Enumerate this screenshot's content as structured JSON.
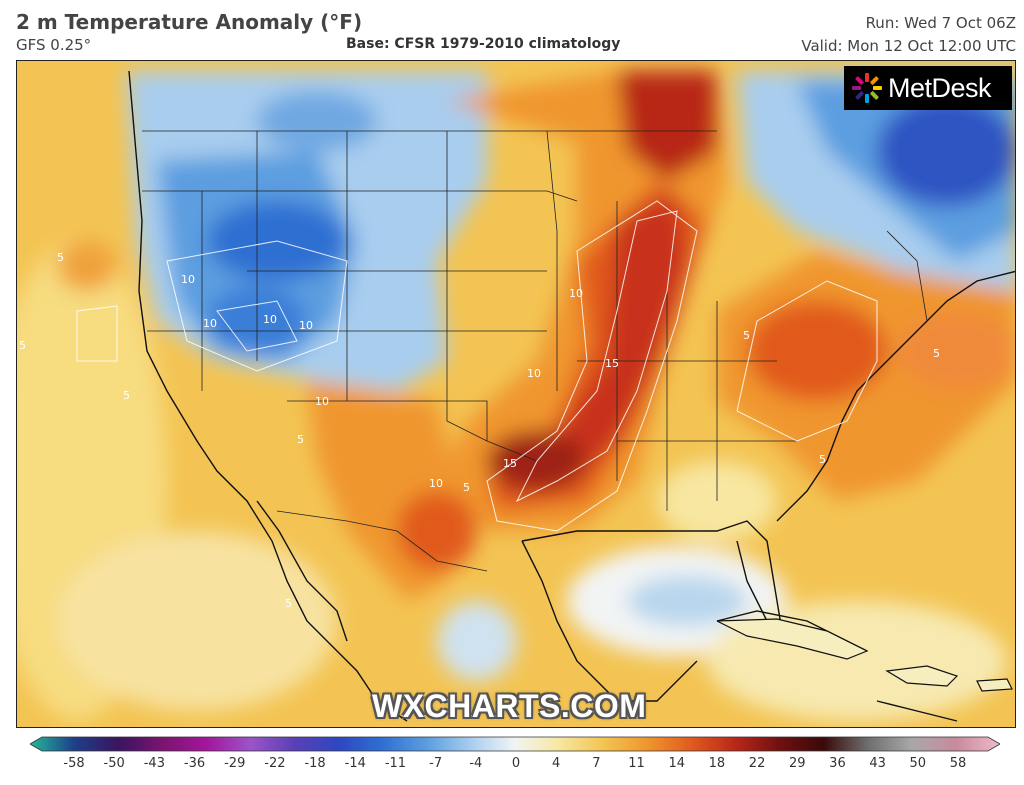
{
  "header": {
    "title": "2 m Temperature Anomaly (°F)",
    "model": "GFS 0.25°",
    "base": "Base: CFSR 1979-2010 climatology",
    "run": "Run: Wed 7 Oct 06Z",
    "valid": "Valid: Mon 12 Oct 12:00 UTC"
  },
  "logo": {
    "text": "MetDesk"
  },
  "watermark": "WXCHARTS.COM",
  "colorbar": {
    "ticks": [
      "-58",
      "-50",
      "-43",
      "-36",
      "-29",
      "-22",
      "-18",
      "-14",
      "-11",
      "-7",
      "-4",
      "0",
      "4",
      "7",
      "11",
      "14",
      "18",
      "22",
      "29",
      "36",
      "43",
      "50",
      "58"
    ],
    "colors": [
      "#23b89a",
      "#1f3f8a",
      "#3a1460",
      "#7a1470",
      "#a4159a",
      "#9b55c8",
      "#5a3fb6",
      "#2d47c2",
      "#2f70d2",
      "#5b9ee0",
      "#a8cdee",
      "#f2f4f4",
      "#f7e7a0",
      "#f3c453",
      "#f0962e",
      "#e15a1e",
      "#b82818",
      "#701010",
      "#3a0a0a",
      "#6e6e6e",
      "#a8a8a8",
      "#c88b9e",
      "#f0b9c8"
    ]
  },
  "contour_labels": [
    {
      "text": "10"
    },
    {
      "text": "10"
    },
    {
      "text": "10"
    },
    {
      "text": "5"
    },
    {
      "text": "5"
    },
    {
      "text": "10"
    },
    {
      "text": "15"
    },
    {
      "text": "10"
    },
    {
      "text": "15"
    },
    {
      "text": "10"
    },
    {
      "text": "10"
    },
    {
      "text": "5"
    },
    {
      "text": "5"
    },
    {
      "text": "5"
    },
    {
      "text": "5"
    },
    {
      "text": "5"
    },
    {
      "text": "5"
    },
    {
      "text": "10"
    },
    {
      "text": "5"
    }
  ]
}
